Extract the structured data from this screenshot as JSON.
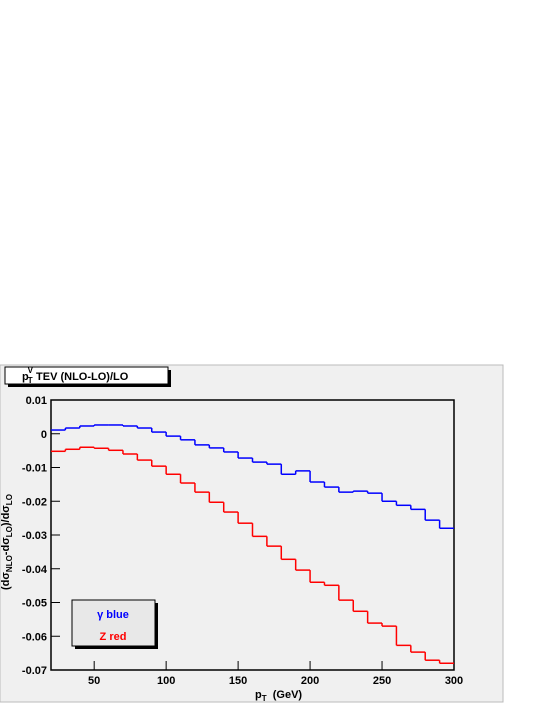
{
  "chart_data": {
    "type": "histogram",
    "title": {
      "base": "p",
      "sub": "T",
      "sup": "V",
      "rest": " TEV (NLO-LO)/LO"
    },
    "x_label": {
      "base": "p",
      "sub": "T",
      "rest": "  (GeV)"
    },
    "y_label": {
      "a": "(dσ",
      "a_sub": "NLO",
      "b": "-dσ",
      "b_sub": "LO",
      "c": ")/dσ",
      "c_sub": "LO"
    },
    "bins": [
      20,
      30,
      40,
      50,
      60,
      70,
      80,
      90,
      100,
      110,
      120,
      130,
      140,
      150,
      160,
      170,
      180,
      190,
      200,
      210,
      220,
      230,
      240,
      250,
      260,
      270,
      280,
      290,
      300
    ],
    "series": [
      {
        "name": "γ blue",
        "color": "#0000ff",
        "values": [
          0.0011,
          0.0017,
          0.0023,
          0.0026,
          0.0026,
          0.0023,
          0.0017,
          0.0005,
          -0.0007,
          -0.0018,
          -0.0033,
          -0.0042,
          -0.0054,
          -0.0072,
          -0.0084,
          -0.009,
          -0.012,
          -0.011,
          -0.0143,
          -0.0158,
          -0.0173,
          -0.017,
          -0.0176,
          -0.02,
          -0.0212,
          -0.0224,
          -0.0256,
          -0.028
        ]
      },
      {
        "name": "Z red",
        "color": "#ff0000",
        "values": [
          -0.0052,
          -0.0046,
          -0.004,
          -0.0043,
          -0.0049,
          -0.006,
          -0.0078,
          -0.0096,
          -0.012,
          -0.0146,
          -0.0173,
          -0.0203,
          -0.0232,
          -0.0265,
          -0.0304,
          -0.0333,
          -0.0372,
          -0.0404,
          -0.044,
          -0.0449,
          -0.0493,
          -0.0526,
          -0.0561,
          -0.057,
          -0.0627,
          -0.0647,
          -0.0671,
          -0.068
        ]
      }
    ],
    "xlim": [
      20,
      300
    ],
    "ylim": [
      -0.07,
      0.01
    ],
    "xticks": [
      50,
      100,
      150,
      200,
      250,
      300
    ],
    "yticks": [
      0.01,
      0,
      -0.01,
      -0.02,
      -0.03,
      -0.04,
      -0.05,
      -0.06,
      -0.07
    ]
  }
}
